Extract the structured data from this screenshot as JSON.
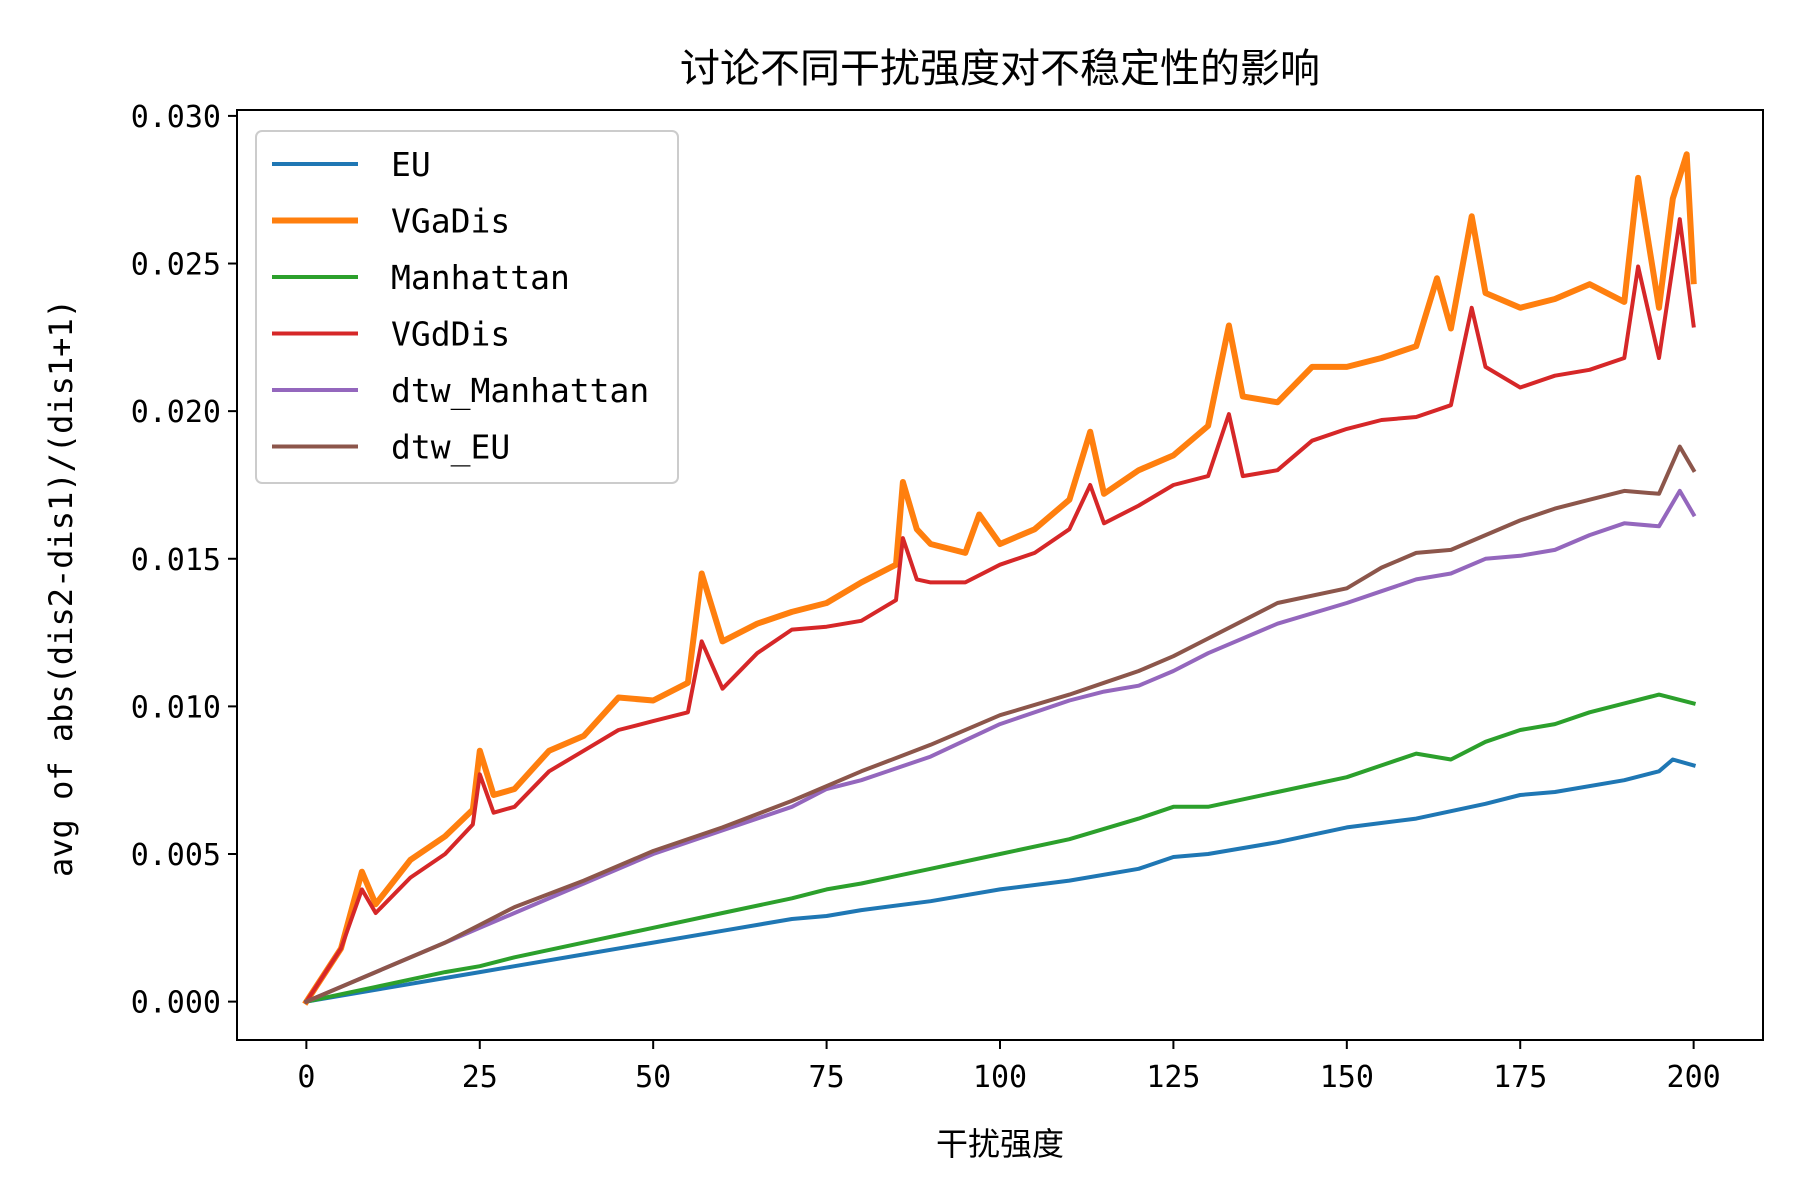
{
  "chart_data": {
    "type": "line",
    "title": "讨论不同干扰强度对不稳定性的影响",
    "xlabel": "干扰强度",
    "ylabel": "avg of abs(dis2-dis1)/(dis1+1)",
    "xlim": [
      -10,
      210
    ],
    "ylim": [
      -0.0013,
      0.0302
    ],
    "xticks": [
      0,
      25,
      50,
      75,
      100,
      125,
      150,
      175,
      200
    ],
    "xtick_labels": [
      "0",
      "25",
      "50",
      "75",
      "100",
      "125",
      "150",
      "175",
      "200"
    ],
    "yticks": [
      0.0,
      0.005,
      0.01,
      0.015,
      0.02,
      0.025,
      0.03
    ],
    "ytick_labels": [
      "0.000",
      "0.005",
      "0.010",
      "0.015",
      "0.020",
      "0.025",
      "0.030"
    ],
    "grid": false,
    "legend_position": "upper-left",
    "series": [
      {
        "name": "EU",
        "color": "#1f77b4",
        "width": 4,
        "points": [
          [
            0,
            0
          ],
          [
            10,
            0.0004
          ],
          [
            20,
            0.0008
          ],
          [
            25,
            0.001
          ],
          [
            30,
            0.0012
          ],
          [
            40,
            0.0016
          ],
          [
            50,
            0.002
          ],
          [
            60,
            0.0024
          ],
          [
            70,
            0.0028
          ],
          [
            75,
            0.0029
          ],
          [
            80,
            0.0031
          ],
          [
            90,
            0.0034
          ],
          [
            100,
            0.0038
          ],
          [
            110,
            0.0041
          ],
          [
            120,
            0.0045
          ],
          [
            125,
            0.0049
          ],
          [
            130,
            0.005
          ],
          [
            140,
            0.0054
          ],
          [
            150,
            0.0059
          ],
          [
            160,
            0.0062
          ],
          [
            170,
            0.0067
          ],
          [
            175,
            0.007
          ],
          [
            180,
            0.0071
          ],
          [
            190,
            0.0075
          ],
          [
            195,
            0.0078
          ],
          [
            197,
            0.0082
          ],
          [
            200,
            0.008
          ]
        ]
      },
      {
        "name": "VGaDis",
        "color": "#ff7f0e",
        "width": 6,
        "points": [
          [
            0,
            0
          ],
          [
            5,
            0.0018
          ],
          [
            8,
            0.0044
          ],
          [
            10,
            0.0033
          ],
          [
            15,
            0.0048
          ],
          [
            20,
            0.0056
          ],
          [
            24,
            0.0065
          ],
          [
            25,
            0.0085
          ],
          [
            27,
            0.007
          ],
          [
            30,
            0.0072
          ],
          [
            35,
            0.0085
          ],
          [
            40,
            0.009
          ],
          [
            45,
            0.0103
          ],
          [
            50,
            0.0102
          ],
          [
            55,
            0.0108
          ],
          [
            57,
            0.0145
          ],
          [
            60,
            0.0122
          ],
          [
            65,
            0.0128
          ],
          [
            70,
            0.0132
          ],
          [
            75,
            0.0135
          ],
          [
            80,
            0.0142
          ],
          [
            85,
            0.0148
          ],
          [
            86,
            0.0176
          ],
          [
            88,
            0.016
          ],
          [
            90,
            0.0155
          ],
          [
            95,
            0.0152
          ],
          [
            97,
            0.0165
          ],
          [
            100,
            0.0155
          ],
          [
            105,
            0.016
          ],
          [
            110,
            0.017
          ],
          [
            113,
            0.0193
          ],
          [
            115,
            0.0172
          ],
          [
            120,
            0.018
          ],
          [
            125,
            0.0185
          ],
          [
            130,
            0.0195
          ],
          [
            133,
            0.0229
          ],
          [
            135,
            0.0205
          ],
          [
            140,
            0.0203
          ],
          [
            145,
            0.0215
          ],
          [
            150,
            0.0215
          ],
          [
            155,
            0.0218
          ],
          [
            160,
            0.0222
          ],
          [
            163,
            0.0245
          ],
          [
            165,
            0.0228
          ],
          [
            168,
            0.0266
          ],
          [
            170,
            0.024
          ],
          [
            175,
            0.0235
          ],
          [
            180,
            0.0238
          ],
          [
            185,
            0.0243
          ],
          [
            190,
            0.0237
          ],
          [
            192,
            0.0279
          ],
          [
            195,
            0.0235
          ],
          [
            197,
            0.0272
          ],
          [
            199,
            0.0287
          ],
          [
            200,
            0.0244
          ]
        ]
      },
      {
        "name": "Manhattan",
        "color": "#2ca02c",
        "width": 4,
        "points": [
          [
            0,
            0
          ],
          [
            10,
            0.0005
          ],
          [
            20,
            0.001
          ],
          [
            25,
            0.0012
          ],
          [
            30,
            0.0015
          ],
          [
            40,
            0.002
          ],
          [
            50,
            0.0025
          ],
          [
            60,
            0.003
          ],
          [
            70,
            0.0035
          ],
          [
            75,
            0.0038
          ],
          [
            80,
            0.004
          ],
          [
            90,
            0.0045
          ],
          [
            100,
            0.005
          ],
          [
            110,
            0.0055
          ],
          [
            120,
            0.0062
          ],
          [
            125,
            0.0066
          ],
          [
            130,
            0.0066
          ],
          [
            140,
            0.0071
          ],
          [
            150,
            0.0076
          ],
          [
            155,
            0.008
          ],
          [
            160,
            0.0084
          ],
          [
            165,
            0.0082
          ],
          [
            170,
            0.0088
          ],
          [
            175,
            0.0092
          ],
          [
            180,
            0.0094
          ],
          [
            185,
            0.0098
          ],
          [
            190,
            0.0101
          ],
          [
            195,
            0.0104
          ],
          [
            200,
            0.0101
          ]
        ]
      },
      {
        "name": "VGdDis",
        "color": "#d62728",
        "width": 4,
        "points": [
          [
            0,
            0
          ],
          [
            5,
            0.0018
          ],
          [
            8,
            0.0038
          ],
          [
            10,
            0.003
          ],
          [
            15,
            0.0042
          ],
          [
            20,
            0.005
          ],
          [
            24,
            0.006
          ],
          [
            25,
            0.0077
          ],
          [
            27,
            0.0064
          ],
          [
            30,
            0.0066
          ],
          [
            35,
            0.0078
          ],
          [
            40,
            0.0085
          ],
          [
            45,
            0.0092
          ],
          [
            50,
            0.0095
          ],
          [
            55,
            0.0098
          ],
          [
            57,
            0.0122
          ],
          [
            60,
            0.0106
          ],
          [
            65,
            0.0118
          ],
          [
            70,
            0.0126
          ],
          [
            75,
            0.0127
          ],
          [
            80,
            0.0129
          ],
          [
            85,
            0.0136
          ],
          [
            86,
            0.0157
          ],
          [
            88,
            0.0143
          ],
          [
            90,
            0.0142
          ],
          [
            95,
            0.0142
          ],
          [
            100,
            0.0148
          ],
          [
            105,
            0.0152
          ],
          [
            110,
            0.016
          ],
          [
            113,
            0.0175
          ],
          [
            115,
            0.0162
          ],
          [
            120,
            0.0168
          ],
          [
            125,
            0.0175
          ],
          [
            130,
            0.0178
          ],
          [
            133,
            0.0199
          ],
          [
            135,
            0.0178
          ],
          [
            140,
            0.018
          ],
          [
            145,
            0.019
          ],
          [
            150,
            0.0194
          ],
          [
            155,
            0.0197
          ],
          [
            160,
            0.0198
          ],
          [
            165,
            0.0202
          ],
          [
            168,
            0.0235
          ],
          [
            170,
            0.0215
          ],
          [
            175,
            0.0208
          ],
          [
            180,
            0.0212
          ],
          [
            185,
            0.0214
          ],
          [
            190,
            0.0218
          ],
          [
            192,
            0.0249
          ],
          [
            195,
            0.0218
          ],
          [
            198,
            0.0265
          ],
          [
            200,
            0.0229
          ]
        ]
      },
      {
        "name": "dtw_Manhattan",
        "color": "#9467bd",
        "width": 4,
        "points": [
          [
            0,
            0
          ],
          [
            10,
            0.001
          ],
          [
            20,
            0.002
          ],
          [
            25,
            0.0025
          ],
          [
            30,
            0.003
          ],
          [
            40,
            0.004
          ],
          [
            50,
            0.005
          ],
          [
            60,
            0.0058
          ],
          [
            70,
            0.0066
          ],
          [
            75,
            0.0072
          ],
          [
            80,
            0.0075
          ],
          [
            90,
            0.0083
          ],
          [
            100,
            0.0094
          ],
          [
            110,
            0.0102
          ],
          [
            115,
            0.0105
          ],
          [
            120,
            0.0107
          ],
          [
            125,
            0.0112
          ],
          [
            130,
            0.0118
          ],
          [
            140,
            0.0128
          ],
          [
            150,
            0.0135
          ],
          [
            155,
            0.0139
          ],
          [
            160,
            0.0143
          ],
          [
            165,
            0.0145
          ],
          [
            170,
            0.015
          ],
          [
            175,
            0.0151
          ],
          [
            180,
            0.0153
          ],
          [
            185,
            0.0158
          ],
          [
            190,
            0.0162
          ],
          [
            195,
            0.0161
          ],
          [
            198,
            0.0173
          ],
          [
            200,
            0.0165
          ]
        ]
      },
      {
        "name": "dtw_EU",
        "color": "#8c564b",
        "width": 4,
        "points": [
          [
            0,
            0
          ],
          [
            10,
            0.001
          ],
          [
            20,
            0.002
          ],
          [
            25,
            0.0026
          ],
          [
            30,
            0.0032
          ],
          [
            40,
            0.0041
          ],
          [
            50,
            0.0051
          ],
          [
            60,
            0.0059
          ],
          [
            70,
            0.0068
          ],
          [
            75,
            0.0073
          ],
          [
            80,
            0.0078
          ],
          [
            90,
            0.0087
          ],
          [
            100,
            0.0097
          ],
          [
            110,
            0.0104
          ],
          [
            115,
            0.0108
          ],
          [
            120,
            0.0112
          ],
          [
            125,
            0.0117
          ],
          [
            130,
            0.0123
          ],
          [
            140,
            0.0135
          ],
          [
            150,
            0.014
          ],
          [
            155,
            0.0147
          ],
          [
            160,
            0.0152
          ],
          [
            165,
            0.0153
          ],
          [
            170,
            0.0158
          ],
          [
            175,
            0.0163
          ],
          [
            180,
            0.0167
          ],
          [
            185,
            0.017
          ],
          [
            190,
            0.0173
          ],
          [
            195,
            0.0172
          ],
          [
            198,
            0.0188
          ],
          [
            200,
            0.018
          ]
        ]
      }
    ]
  }
}
